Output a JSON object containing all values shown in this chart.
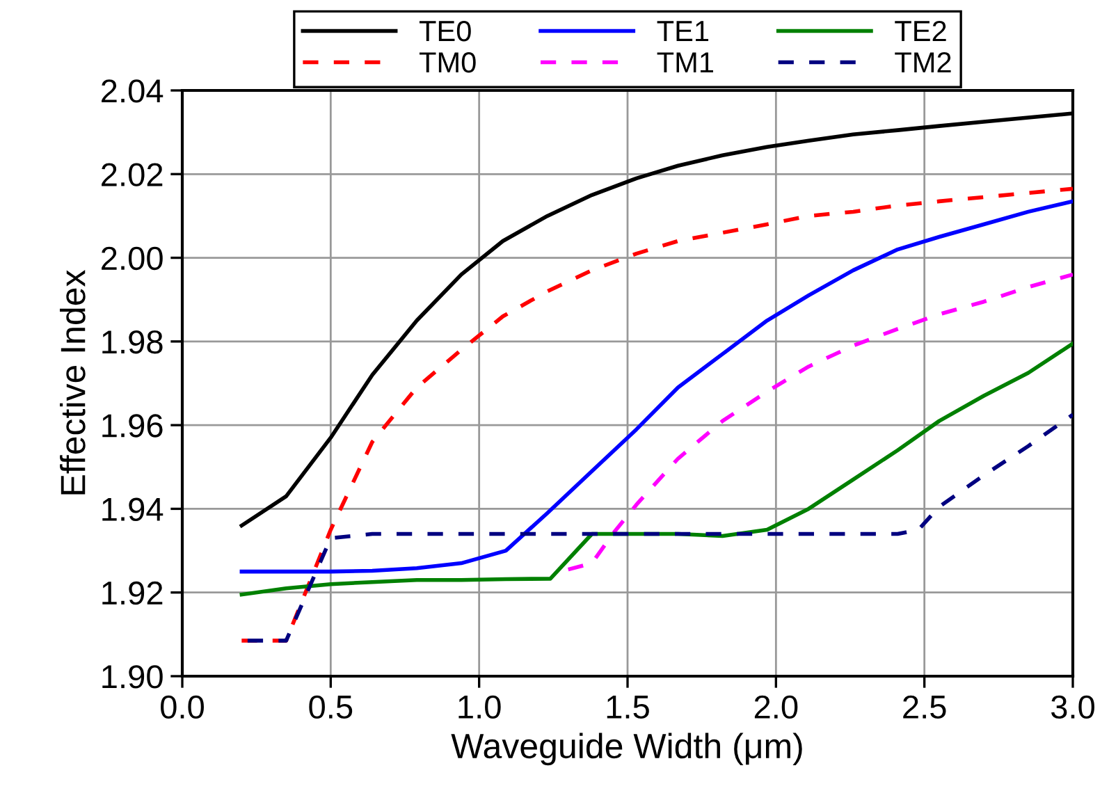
{
  "chart_data": {
    "type": "line",
    "xlabel": "Waveguide Width (μm)",
    "ylabel": "Effective Index",
    "xlim": [
      0.0,
      3.0
    ],
    "ylim": [
      1.9,
      2.04
    ],
    "xticks": [
      {
        "value": 0.0,
        "label": "0.0"
      },
      {
        "value": 0.5,
        "label": "0.5"
      },
      {
        "value": 1.0,
        "label": "1.0"
      },
      {
        "value": 1.5,
        "label": "1.5"
      },
      {
        "value": 2.0,
        "label": "2.0"
      },
      {
        "value": 2.5,
        "label": "2.5"
      },
      {
        "value": 3.0,
        "label": "3.0"
      }
    ],
    "yticks": [
      {
        "value": 1.9,
        "label": "1.90"
      },
      {
        "value": 1.92,
        "label": "1.92"
      },
      {
        "value": 1.94,
        "label": "1.94"
      },
      {
        "value": 1.96,
        "label": "1.96"
      },
      {
        "value": 1.98,
        "label": "1.98"
      },
      {
        "value": 2.0,
        "label": "2.00"
      },
      {
        "value": 2.02,
        "label": "2.02"
      },
      {
        "value": 2.04,
        "label": "2.04"
      }
    ],
    "grid": true,
    "legend": "top",
    "marker": "none",
    "series": [
      {
        "name": "TE0",
        "color": "#000000",
        "line_style": "solid",
        "x": [
          0.2,
          0.35,
          0.5,
          0.64,
          0.79,
          0.94,
          1.08,
          1.23,
          1.38,
          1.53,
          1.67,
          1.82,
          1.97,
          2.11,
          2.26,
          2.41,
          2.55,
          2.7,
          2.85,
          3.0
        ],
        "values": [
          1.936,
          1.943,
          1.957,
          1.972,
          1.985,
          1.996,
          2.004,
          2.01,
          2.015,
          2.019,
          2.022,
          2.0245,
          2.0265,
          2.028,
          2.0295,
          2.0305,
          2.0315,
          2.0325,
          2.0335,
          2.0345
        ]
      },
      {
        "name": "TM0",
        "color": "#ff0000",
        "line_style": "dashed",
        "x": [
          0.2,
          0.35,
          0.5,
          0.64,
          0.79,
          0.94,
          1.08,
          1.23,
          1.38,
          1.53,
          1.67,
          1.82,
          1.97,
          2.11,
          2.26,
          2.41,
          2.55,
          2.7,
          2.85,
          3.0
        ],
        "values": [
          1.9085,
          1.9085,
          1.935,
          1.956,
          1.969,
          1.978,
          1.986,
          1.992,
          1.997,
          2.001,
          2.004,
          2.006,
          2.008,
          2.01,
          2.011,
          2.0125,
          2.0135,
          2.0145,
          2.0155,
          2.0165
        ]
      },
      {
        "name": "TE1",
        "color": "#0000ff",
        "line_style": "solid",
        "x": [
          0.2,
          0.35,
          0.5,
          0.64,
          0.79,
          0.94,
          1.09,
          1.23,
          1.38,
          1.53,
          1.67,
          1.82,
          1.97,
          2.11,
          2.26,
          2.41,
          2.55,
          2.7,
          2.85,
          3.0
        ],
        "values": [
          1.925,
          1.925,
          1.925,
          1.9252,
          1.9258,
          1.927,
          1.93,
          1.939,
          1.949,
          1.959,
          1.969,
          1.977,
          1.985,
          1.991,
          1.997,
          2.002,
          2.005,
          2.008,
          2.011,
          2.0135
        ]
      },
      {
        "name": "TM1",
        "color": "#ff00ff",
        "line_style": "dashed",
        "x": [
          1.3,
          1.38,
          1.45,
          1.53,
          1.67,
          1.82,
          1.97,
          2.11,
          2.26,
          2.41,
          2.55,
          2.7,
          2.85,
          3.0
        ],
        "values": [
          1.9255,
          1.927,
          1.934,
          1.941,
          1.952,
          1.961,
          1.968,
          1.974,
          1.979,
          1.983,
          1.9865,
          1.9895,
          1.993,
          1.996
        ]
      },
      {
        "name": "TE2",
        "color": "#008000",
        "line_style": "solid",
        "x": [
          0.2,
          0.35,
          0.5,
          0.64,
          0.79,
          0.94,
          1.09,
          1.24,
          1.38,
          1.53,
          1.67,
          1.82,
          1.97,
          2.11,
          2.26,
          2.41,
          2.55,
          2.7,
          2.85,
          3.0
        ],
        "values": [
          1.9195,
          1.921,
          1.922,
          1.9225,
          1.923,
          1.923,
          1.9232,
          1.9233,
          1.934,
          1.934,
          1.934,
          1.9335,
          1.935,
          1.94,
          1.947,
          1.954,
          1.961,
          1.967,
          1.9725,
          1.9795
        ]
      },
      {
        "name": "TM2",
        "color": "#000080",
        "line_style": "dashed",
        "x": [
          0.22,
          0.35,
          0.5,
          0.64,
          0.79,
          0.94,
          1.09,
          1.24,
          1.38,
          1.53,
          1.67,
          1.82,
          1.97,
          2.11,
          2.26,
          2.41,
          2.48,
          2.55,
          2.7,
          2.85,
          3.0
        ],
        "values": [
          1.9085,
          1.9085,
          1.933,
          1.934,
          1.934,
          1.934,
          1.934,
          1.934,
          1.934,
          1.934,
          1.934,
          1.934,
          1.934,
          1.934,
          1.934,
          1.934,
          1.935,
          1.9405,
          1.948,
          1.955,
          1.9625
        ]
      }
    ]
  }
}
